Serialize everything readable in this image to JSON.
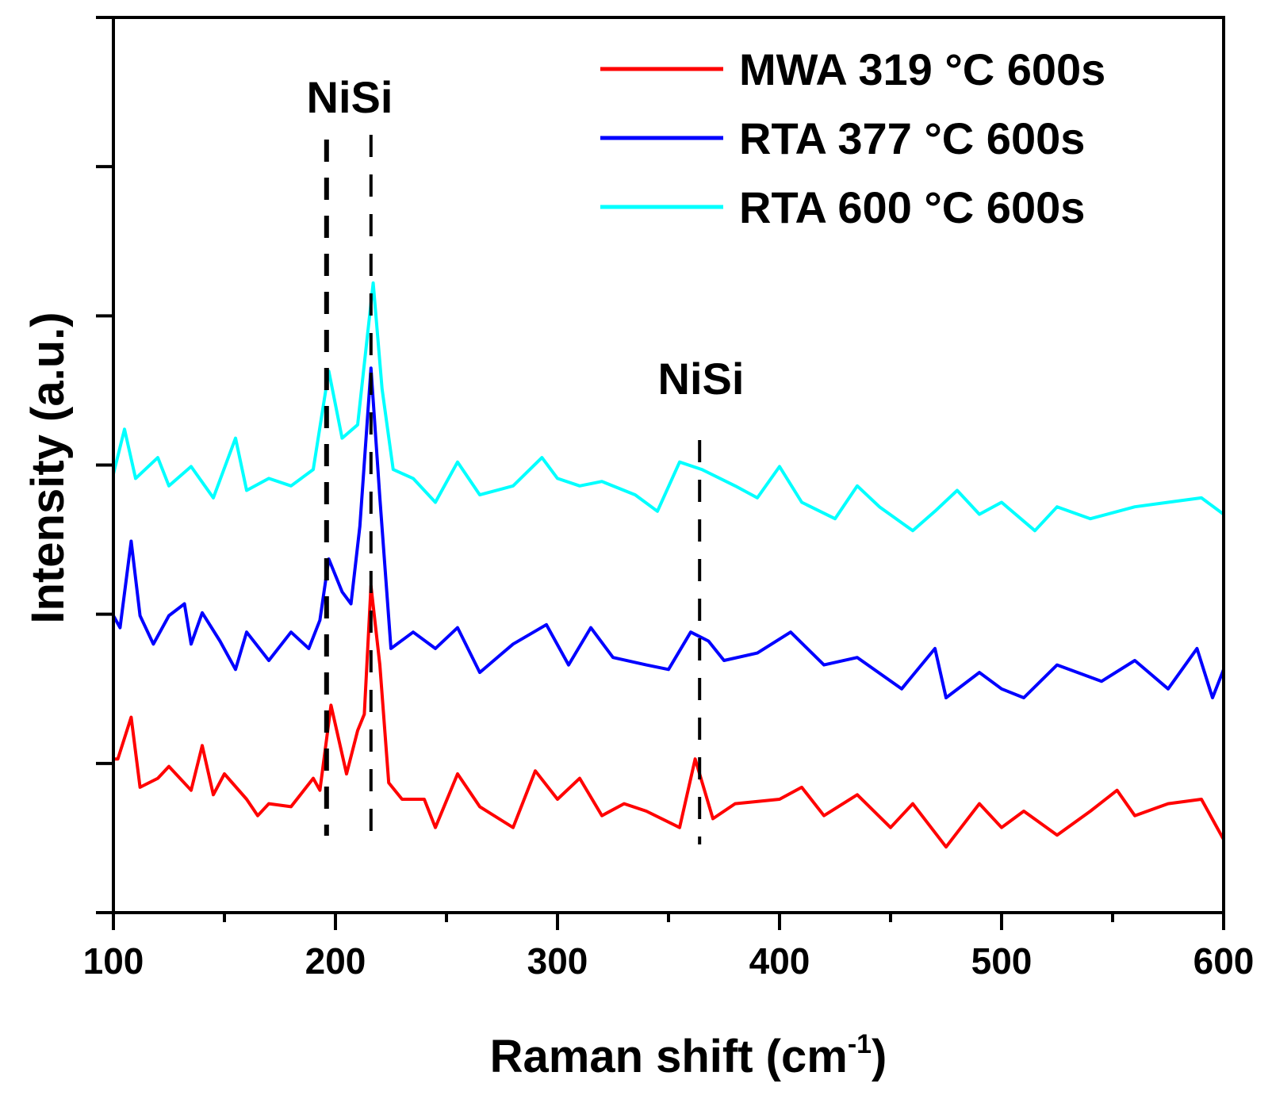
{
  "chart_data": {
    "type": "line",
    "title": "",
    "xlabel": "Raman shift (cm",
    "xlabel_sup": "-1",
    "xlabel_close": ")",
    "ylabel": "Intensity (a.u.)",
    "xlim": [
      100,
      600
    ],
    "ylim": [
      0,
      6
    ],
    "xticks": [
      100,
      200,
      300,
      400,
      500,
      600
    ],
    "xtick_labels": [
      "100",
      "200",
      "300",
      "400",
      "500",
      "600"
    ],
    "yticks": [
      0,
      1,
      2,
      3,
      4,
      5,
      6
    ],
    "ytick_labels_shown": false,
    "grid": false,
    "legend_position": "top-right",
    "series": [
      {
        "name": "MWA 319 °C 600s",
        "color": "#ff0000",
        "x": [
          100,
          102,
          108,
          112,
          120,
          125,
          135,
          140,
          145,
          150,
          160,
          165,
          170,
          180,
          190,
          193,
          198,
          205,
          210,
          213,
          216,
          220,
          224,
          230,
          240,
          245,
          255,
          265,
          280,
          290,
          300,
          310,
          320,
          330,
          340,
          355,
          362,
          370,
          380,
          400,
          410,
          420,
          435,
          450,
          460,
          475,
          490,
          500,
          510,
          525,
          540,
          552,
          560,
          575,
          590,
          600
        ],
        "y": [
          1.03,
          1.03,
          1.31,
          0.84,
          0.9,
          0.98,
          0.82,
          1.12,
          0.79,
          0.93,
          0.76,
          0.65,
          0.73,
          0.71,
          0.9,
          0.82,
          1.39,
          0.93,
          1.22,
          1.33,
          2.19,
          1.66,
          0.87,
          0.76,
          0.76,
          0.57,
          0.93,
          0.71,
          0.57,
          0.95,
          0.76,
          0.9,
          0.65,
          0.73,
          0.68,
          0.57,
          1.03,
          0.63,
          0.73,
          0.76,
          0.84,
          0.65,
          0.79,
          0.57,
          0.73,
          0.44,
          0.73,
          0.57,
          0.68,
          0.52,
          0.68,
          0.82,
          0.65,
          0.73,
          0.76,
          0.49
        ]
      },
      {
        "name": "RTA 377 °C 600s",
        "color": "#0000ff",
        "x": [
          100,
          103,
          108,
          112,
          118,
          125,
          132,
          135,
          140,
          148,
          155,
          160,
          170,
          180,
          188,
          193,
          197,
          203,
          207,
          211,
          216,
          220,
          225,
          235,
          245,
          255,
          265,
          280,
          295,
          305,
          315,
          325,
          340,
          350,
          360,
          368,
          375,
          390,
          405,
          420,
          435,
          455,
          470,
          475,
          490,
          500,
          510,
          525,
          545,
          560,
          575,
          588,
          595,
          600
        ],
        "y": [
          1.99,
          1.91,
          2.49,
          1.99,
          1.8,
          1.99,
          2.07,
          1.8,
          2.01,
          1.82,
          1.63,
          1.88,
          1.69,
          1.88,
          1.77,
          1.96,
          2.37,
          2.15,
          2.07,
          2.59,
          3.65,
          2.78,
          1.77,
          1.88,
          1.77,
          1.91,
          1.61,
          1.8,
          1.93,
          1.66,
          1.91,
          1.71,
          1.66,
          1.63,
          1.88,
          1.82,
          1.69,
          1.74,
          1.88,
          1.66,
          1.71,
          1.5,
          1.77,
          1.44,
          1.61,
          1.5,
          1.44,
          1.66,
          1.55,
          1.69,
          1.5,
          1.77,
          1.44,
          1.63
        ]
      },
      {
        "name": "RTA 600 °C 600s",
        "color": "#00ffff",
        "x": [
          100,
          105,
          110,
          120,
          125,
          135,
          145,
          155,
          160,
          170,
          180,
          190,
          197,
          203,
          210,
          217,
          221,
          226,
          235,
          245,
          255,
          265,
          280,
          293,
          300,
          310,
          320,
          335,
          345,
          355,
          365,
          380,
          390,
          400,
          410,
          425,
          435,
          445,
          460,
          470,
          480,
          490,
          500,
          515,
          525,
          540,
          560,
          575,
          590,
          600
        ],
        "y": [
          2.94,
          3.24,
          2.91,
          3.05,
          2.86,
          2.99,
          2.78,
          3.18,
          2.83,
          2.91,
          2.86,
          2.97,
          3.63,
          3.18,
          3.27,
          4.22,
          3.51,
          2.97,
          2.91,
          2.75,
          3.02,
          2.8,
          2.86,
          3.05,
          2.91,
          2.86,
          2.89,
          2.8,
          2.69,
          3.02,
          2.97,
          2.86,
          2.78,
          2.99,
          2.75,
          2.64,
          2.86,
          2.72,
          2.56,
          2.69,
          2.83,
          2.67,
          2.75,
          2.56,
          2.72,
          2.64,
          2.72,
          2.75,
          2.78,
          2.67
        ]
      }
    ],
    "annotations": [
      {
        "text": "NiSi",
        "x_lines": [
          196,
          216
        ]
      },
      {
        "text": "NiSi",
        "x_lines": [
          364
        ]
      }
    ]
  }
}
